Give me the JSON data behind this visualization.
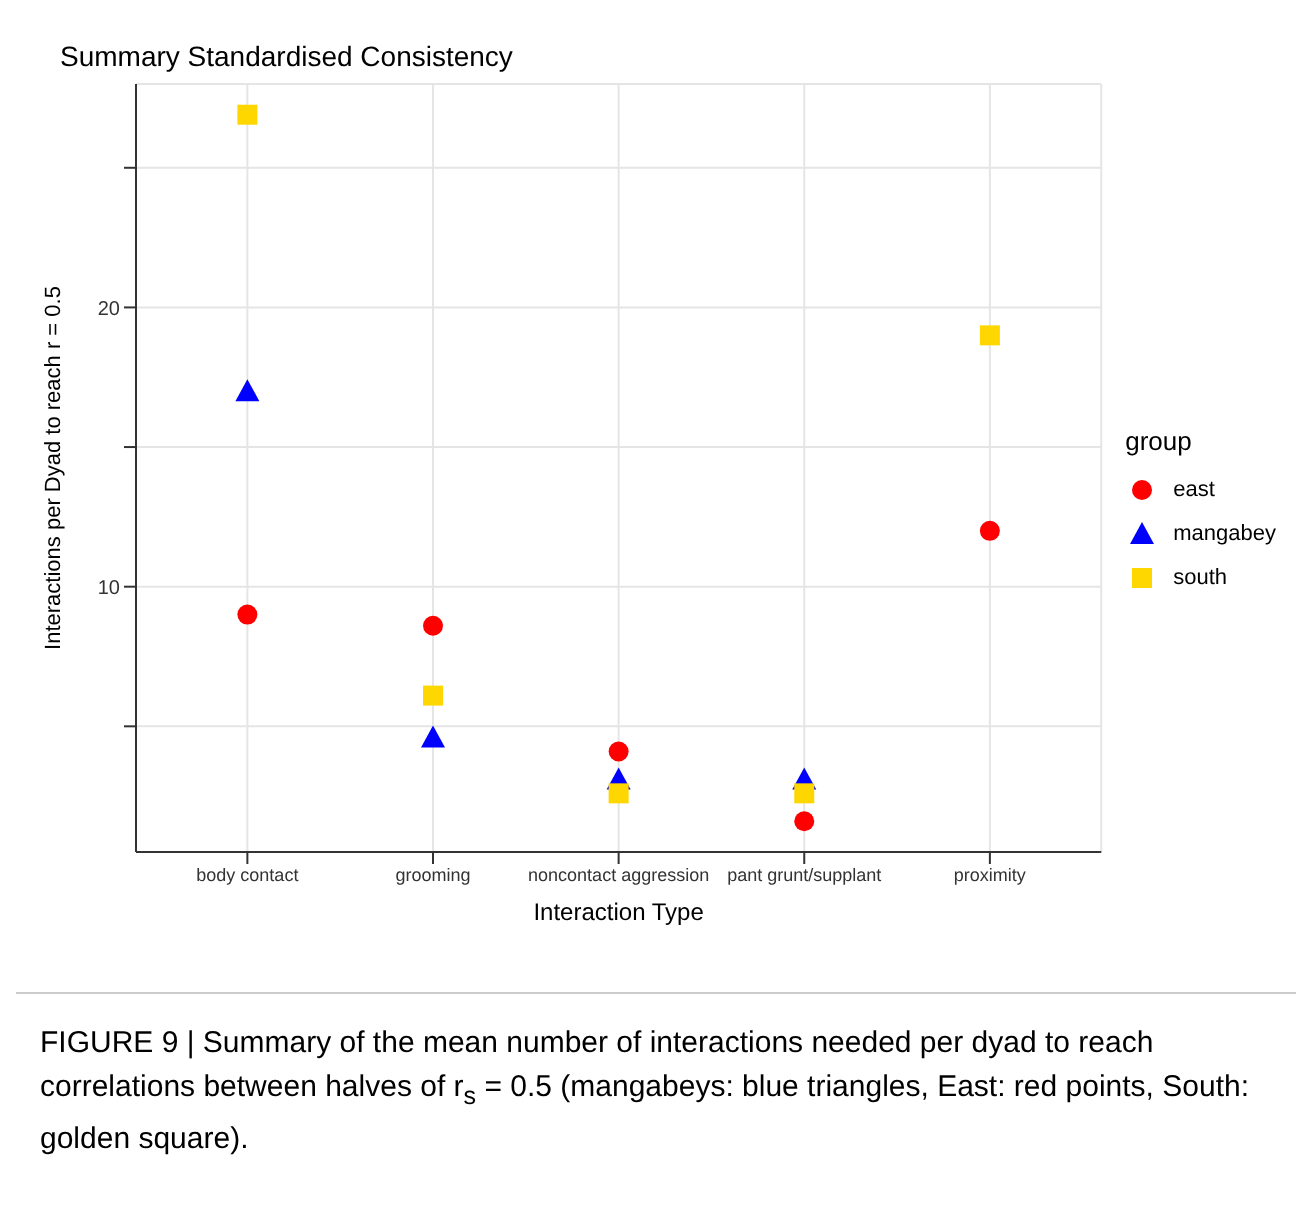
{
  "chart_data": {
    "type": "scatter",
    "title": "Summary Standardised Consistency",
    "xlabel": "Interaction Type",
    "ylabel": "Interactions per Dyad to reach r = 0.5",
    "legend_title": "group",
    "legend": "right",
    "categories": [
      "body contact",
      "grooming",
      "noncontact aggression",
      "pant grunt/supplant",
      "proximity"
    ],
    "series": [
      {
        "name": "east",
        "color": "#ff0000",
        "marker": "circle",
        "values": [
          9.0,
          8.6,
          4.1,
          1.6,
          12.0
        ]
      },
      {
        "name": "mangabey",
        "color": "#0000ff",
        "marker": "triangle",
        "values": [
          17.0,
          4.6,
          3.1,
          3.1,
          null
        ]
      },
      {
        "name": "south",
        "color": "#ffd700",
        "marker": "square",
        "values": [
          26.9,
          6.1,
          2.6,
          2.6,
          19.0
        ]
      }
    ],
    "ylim": [
      0.5,
      28
    ],
    "yticks": [
      {
        "value": 5,
        "label": null
      },
      10,
      {
        "value": 15,
        "label": null
      },
      20,
      {
        "value": 25,
        "label": null
      }
    ],
    "grid": true,
    "annotations": [
      "FIGURE 9 | Summary of the mean number of interactions needed per dyad to reach correlations between halves of r$_{s}$ = 0.5 (mangabeys: blue triangles, East: red points, South: golden square)."
    ]
  }
}
